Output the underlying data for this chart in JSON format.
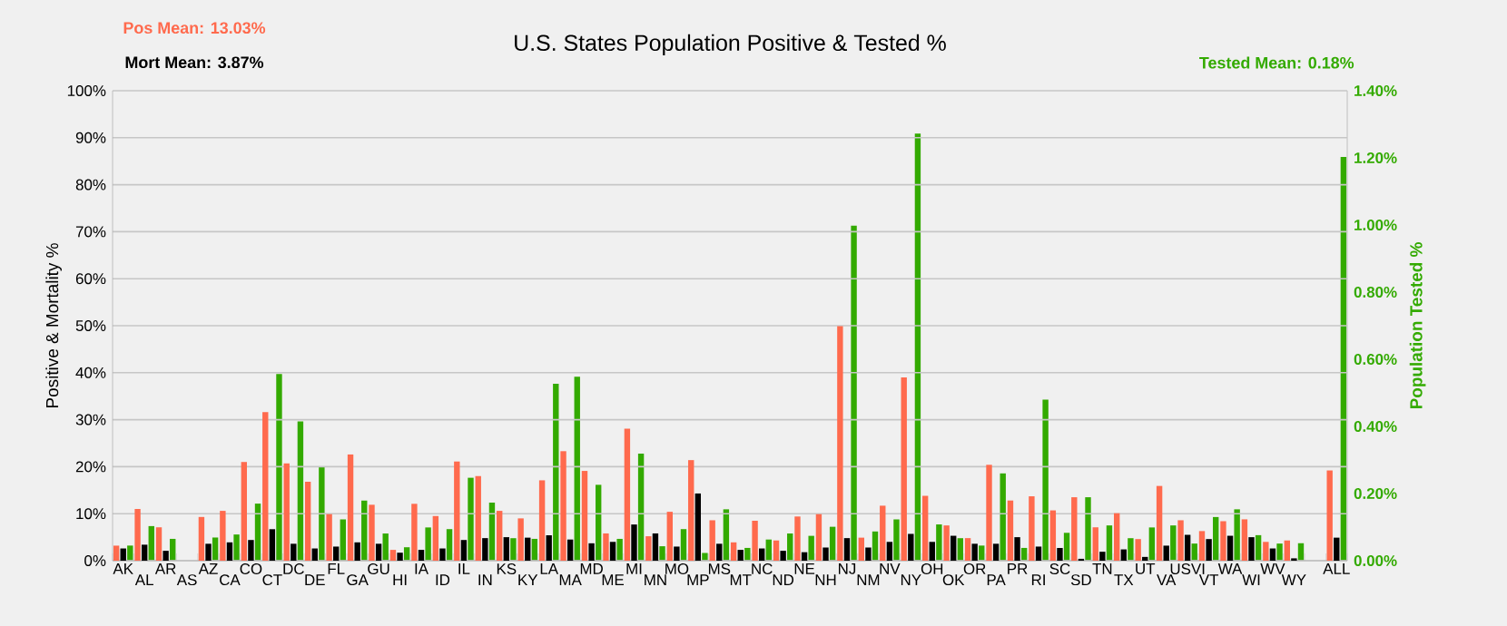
{
  "chart_data": {
    "type": "bar",
    "title": "U.S. States Population Positive & Tested %",
    "ylabel": "Positive & Mortality %",
    "y2label": "Population Tested %",
    "annotations": [
      "Pos Mean: 13.03%",
      "Mort Mean: 3.87%",
      "Tested Mean: 0.18%"
    ],
    "categories": [
      "AK",
      "AL",
      "AR",
      "AS",
      "AZ",
      "CA",
      "CO",
      "CT",
      "DC",
      "DE",
      "FL",
      "GA",
      "GU",
      "HI",
      "IA",
      "ID",
      "IL",
      "IN",
      "KS",
      "KY",
      "LA",
      "MA",
      "MD",
      "ME",
      "MI",
      "MN",
      "MO",
      "MP",
      "MS",
      "MT",
      "NC",
      "ND",
      "NE",
      "NH",
      "NJ",
      "NM",
      "NV",
      "NY",
      "OH",
      "OK",
      "OR",
      "PA",
      "PR",
      "RI",
      "SC",
      "SD",
      "TN",
      "TX",
      "UT",
      "VA",
      "USVI",
      "VT",
      "WA",
      "WI",
      "WV",
      "WY",
      null,
      "ALL"
    ],
    "series": [
      {
        "color": "#ff6a4d",
        "values": [
          3.2,
          11.0,
          7.1,
          null,
          9.3,
          10.6,
          21.0,
          31.6,
          20.7,
          16.8,
          9.9,
          22.6,
          11.9,
          2.3,
          12.1,
          9.5,
          21.1,
          18.0,
          10.6,
          9.0,
          17.1,
          23.3,
          19.1,
          5.8,
          28.1,
          5.2,
          10.4,
          21.4,
          8.6,
          3.9,
          8.5,
          4.3,
          9.4,
          9.9,
          49.9,
          4.9,
          11.7,
          39.0,
          13.8,
          7.5,
          4.8,
          20.4,
          12.8,
          13.7,
          10.7,
          13.5,
          7.1,
          10.1,
          4.6,
          15.9,
          8.6,
          6.3,
          8.4,
          8.8,
          4.0,
          4.3,
          null,
          19.2
        ]
      },
      {
        "color": "#000000",
        "values": [
          2.6,
          3.4,
          2.1,
          null,
          3.6,
          3.9,
          4.4,
          6.7,
          3.6,
          2.6,
          3.0,
          3.9,
          3.6,
          1.7,
          2.3,
          2.6,
          4.4,
          4.8,
          5.0,
          4.9,
          5.4,
          4.5,
          3.7,
          4.0,
          7.7,
          5.8,
          3.0,
          14.3,
          3.6,
          2.3,
          2.6,
          2.1,
          1.8,
          2.8,
          4.8,
          2.8,
          4.0,
          5.7,
          4.0,
          5.3,
          3.6,
          3.6,
          5.0,
          3.0,
          2.7,
          0.4,
          1.9,
          2.4,
          0.8,
          3.2,
          5.5,
          4.6,
          5.3,
          5.0,
          2.6,
          0.5,
          null,
          4.9
        ]
      },
      {
        "color": "#33aa00",
        "axis": "y2",
        "values": [
          0.045,
          0.103,
          0.065,
          null,
          0.069,
          0.078,
          0.17,
          0.556,
          0.415,
          0.281,
          0.123,
          0.179,
          0.081,
          0.04,
          0.099,
          0.094,
          0.247,
          0.173,
          0.067,
          0.065,
          0.527,
          0.548,
          0.226,
          0.065,
          0.319,
          0.043,
          0.094,
          0.023,
          0.153,
          0.038,
          0.063,
          0.081,
          0.074,
          0.101,
          0.998,
          0.087,
          0.123,
          1.272,
          0.108,
          0.067,
          0.045,
          0.26,
          0.038,
          0.48,
          0.083,
          0.189,
          0.105,
          0.067,
          0.099,
          0.105,
          0.051,
          0.13,
          0.153,
          0.076,
          0.051,
          0.052,
          null,
          1.203
        ]
      }
    ],
    "ylim": [
      0,
      100
    ],
    "yticks": [
      {
        "value": 0,
        "label": "0%"
      },
      {
        "value": 10,
        "label": "10%"
      },
      {
        "value": 20,
        "label": "20%"
      },
      {
        "value": 30,
        "label": "30%"
      },
      {
        "value": 40,
        "label": "40%"
      },
      {
        "value": 50,
        "label": "50%"
      },
      {
        "value": 60,
        "label": "60%"
      },
      {
        "value": 70,
        "label": "70%"
      },
      {
        "value": 80,
        "label": "80%"
      },
      {
        "value": 90,
        "label": "90%"
      },
      {
        "value": 100,
        "label": "100%"
      }
    ],
    "y2lim": [
      0,
      1.4
    ],
    "y2ticks": [
      {
        "value": 0,
        "label": "0.00%"
      },
      {
        "value": 0.2,
        "label": "0.20%"
      },
      {
        "value": 0.4,
        "label": "0.40%"
      },
      {
        "value": 0.6,
        "label": "0.60%"
      },
      {
        "value": 0.8,
        "label": "0.80%"
      },
      {
        "value": 1.0,
        "label": "1.00%"
      },
      {
        "value": 1.2,
        "label": "1.20%"
      },
      {
        "value": 1.4,
        "label": "1.40%"
      }
    ],
    "grid": "y"
  }
}
